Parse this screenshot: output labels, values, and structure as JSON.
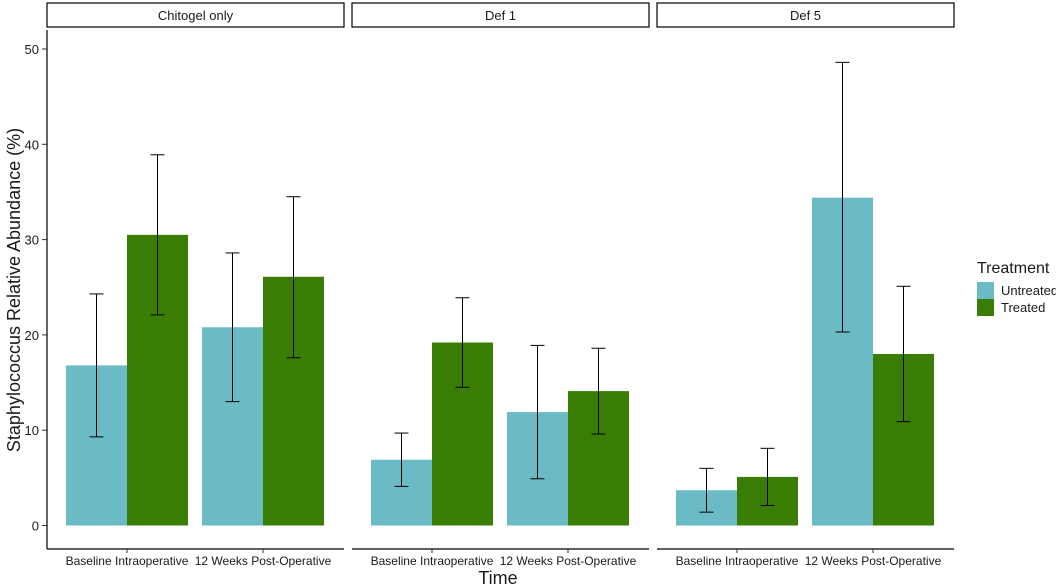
{
  "chart_data": {
    "type": "bar",
    "ylabel": "Staphylococcus Relative Abundance (%)",
    "xlabel": "Time",
    "ylim": [
      0,
      51
    ],
    "yticks": [
      0,
      10,
      20,
      30,
      40,
      50
    ],
    "grid": false,
    "legend": {
      "title": "Treatment",
      "position": "right",
      "entries": [
        "Untreated",
        "Treated"
      ]
    },
    "series_colors": {
      "Untreated": "#6abbc5",
      "Treated": "#3a7d05"
    },
    "categories": [
      "Baseline Intraoperative",
      "12 Weeks Post-Operative"
    ],
    "panels": [
      {
        "title": "Chitogel only",
        "bars": [
          {
            "time": "Baseline Intraoperative",
            "series": "Untreated",
            "value": 16.8,
            "err_low": 9.3,
            "err_high": 24.3
          },
          {
            "time": "Baseline Intraoperative",
            "series": "Treated",
            "value": 30.5,
            "err_low": 22.1,
            "err_high": 38.9
          },
          {
            "time": "12 Weeks Post-Operative",
            "series": "Untreated",
            "value": 20.8,
            "err_low": 13.0,
            "err_high": 28.6
          },
          {
            "time": "12 Weeks Post-Operative",
            "series": "Treated",
            "value": 26.1,
            "err_low": 17.6,
            "err_high": 34.5
          }
        ]
      },
      {
        "title": "Def 1",
        "bars": [
          {
            "time": "Baseline Intraoperative",
            "series": "Untreated",
            "value": 6.9,
            "err_low": 4.1,
            "err_high": 9.7
          },
          {
            "time": "Baseline Intraoperative",
            "series": "Treated",
            "value": 19.2,
            "err_low": 14.5,
            "err_high": 23.9
          },
          {
            "time": "12 Weeks Post-Operative",
            "series": "Untreated",
            "value": 11.9,
            "err_low": 4.9,
            "err_high": 18.9
          },
          {
            "time": "12 Weeks Post-Operative",
            "series": "Treated",
            "value": 14.1,
            "err_low": 9.6,
            "err_high": 18.6
          }
        ]
      },
      {
        "title": "Def 5",
        "bars": [
          {
            "time": "Baseline Intraoperative",
            "series": "Untreated",
            "value": 3.7,
            "err_low": 1.4,
            "err_high": 6.0
          },
          {
            "time": "Baseline Intraoperative",
            "series": "Treated",
            "value": 5.1,
            "err_low": 2.1,
            "err_high": 8.1
          },
          {
            "time": "12 Weeks Post-Operative",
            "series": "Untreated",
            "value": 34.4,
            "err_low": 20.3,
            "err_high": 48.6
          },
          {
            "time": "12 Weeks Post-Operative",
            "series": "Treated",
            "value": 18.0,
            "err_low": 10.9,
            "err_high": 25.1
          }
        ]
      }
    ]
  }
}
